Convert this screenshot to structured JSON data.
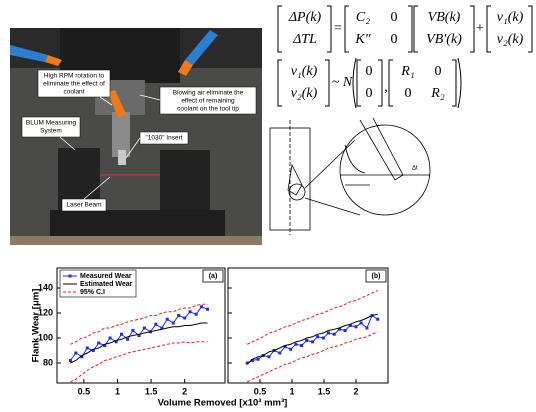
{
  "photo_labels": {
    "rpm": [
      "High RPM rotation to",
      "eliminate the effect of",
      "coolant"
    ],
    "air": [
      "Blowing air eliminate the",
      "effect of remaining",
      "coolant on the tool tip"
    ],
    "blum": [
      "BLUM Measuring",
      "System"
    ],
    "insert": [
      "\"1030\" Insert"
    ],
    "laser": [
      "Laser Beam"
    ]
  },
  "equations": {
    "lhs": [
      "ΔP(k)",
      "ΔTL"
    ],
    "eq": "=",
    "A": [
      [
        "C₂",
        "0"
      ],
      [
        "K″",
        "0"
      ]
    ],
    "state": [
      "VB(k)",
      "VB′(k)"
    ],
    "plus": "+",
    "v": [
      "v₁(k)",
      "v₂(k)"
    ],
    "noise": [
      "v₁(k)",
      "v₂(k)"
    ],
    "dist": "~ N",
    "mean": [
      "0",
      "0"
    ],
    "comma": ",",
    "cov": [
      [
        "R₁",
        "0"
      ],
      [
        "0",
        "R₂"
      ]
    ]
  },
  "diagram_labels": [
    "Δt"
  ],
  "chart_data": [
    {
      "type": "line",
      "panel_label": "(a)",
      "ylabel": "Flank Wear [μm]",
      "xlabel": "Volume Removed [x10³ mm³]",
      "legend": "upper left",
      "xlim": [
        0.1,
        2.6
      ],
      "ylim": [
        64,
        156
      ],
      "xticks": [
        0.5,
        1,
        1.5,
        2
      ],
      "yticks": [
        80,
        100,
        120,
        140
      ],
      "ytick_labels": true,
      "x": [
        0.3,
        0.38,
        0.47,
        0.55,
        0.64,
        0.72,
        0.81,
        0.89,
        0.98,
        1.06,
        1.15,
        1.23,
        1.32,
        1.4,
        1.49,
        1.57,
        1.66,
        1.74,
        1.83,
        1.91,
        2.0,
        2.08,
        2.17,
        2.25,
        2.34
      ],
      "series": [
        {
          "name": "Measured Wear",
          "color": "#1f2fe0",
          "linestyle": "-o",
          "values": [
            82,
            88,
            85,
            92,
            90,
            96,
            94,
            100,
            97,
            103,
            99,
            106,
            102,
            108,
            105,
            111,
            108,
            115,
            112,
            118,
            116,
            121,
            119,
            125,
            123
          ]
        },
        {
          "name": "Estimated Wear",
          "color": "#000000",
          "linestyle": "-",
          "values": [
            80,
            82,
            86,
            88,
            91,
            92,
            95,
            96,
            98,
            99,
            101,
            102,
            103,
            104,
            105,
            106,
            107,
            108,
            109,
            109,
            110,
            110,
            111,
            112,
            112
          ]
        },
        {
          "name": "95% C.I",
          "color": "#e02020",
          "linestyle": "--",
          "values": [
            95,
            97,
            100,
            101,
            104,
            105,
            108,
            108,
            110,
            111,
            113,
            114,
            115,
            116,
            118,
            118,
            120,
            121,
            121,
            123,
            124,
            124,
            126,
            127,
            127
          ]
        },
        {
          "color": "#e02020",
          "linestyle": "--",
          "values": [
            65,
            67,
            71,
            74,
            77,
            79,
            82,
            83,
            85,
            86,
            88,
            89,
            90,
            91,
            92,
            93,
            94,
            95,
            96,
            96,
            97,
            96,
            97,
            97,
            97
          ]
        }
      ]
    },
    {
      "type": "line",
      "panel_label": "(b)",
      "xlim": [
        0,
        2.5
      ],
      "ylim": [
        64,
        156
      ],
      "xticks": [
        0.5,
        1,
        1.5,
        2
      ],
      "yticks": [
        80,
        100,
        120,
        140
      ],
      "ytick_labels": false,
      "x": [
        0.3,
        0.38,
        0.47,
        0.55,
        0.64,
        0.72,
        0.81,
        0.89,
        0.98,
        1.06,
        1.15,
        1.23,
        1.32,
        1.4,
        1.49,
        1.57,
        1.66,
        1.74,
        1.83,
        1.91,
        2.0,
        2.08,
        2.17,
        2.25,
        2.34
      ],
      "series": [
        {
          "color": "#1f2fe0",
          "linestyle": "-o",
          "values": [
            80,
            82,
            83,
            86,
            85,
            90,
            88,
            93,
            91,
            95,
            94,
            98,
            97,
            101,
            100,
            104,
            103,
            107,
            106,
            110,
            109,
            112,
            108,
            118,
            115
          ]
        },
        {
          "color": "#000000",
          "linestyle": "-",
          "values": [
            79,
            83,
            85,
            86,
            89,
            90,
            92,
            94,
            95,
            97,
            98,
            100,
            101,
            103,
            104,
            106,
            107,
            108,
            110,
            111,
            113,
            114,
            116,
            118,
            119
          ]
        },
        {
          "color": "#e02020",
          "linestyle": "--",
          "values": [
            95,
            97,
            99,
            101,
            104,
            105,
            107,
            109,
            110,
            112,
            114,
            115,
            117,
            119,
            120,
            122,
            124,
            125,
            127,
            129,
            130,
            132,
            134,
            136,
            138
          ]
        },
        {
          "color": "#e02020",
          "linestyle": "--",
          "values": [
            65,
            67,
            69,
            71,
            73,
            75,
            77,
            79,
            80,
            82,
            84,
            85,
            87,
            88,
            90,
            92,
            93,
            94,
            96,
            97,
            99,
            100,
            101,
            103,
            105
          ]
        }
      ]
    }
  ]
}
